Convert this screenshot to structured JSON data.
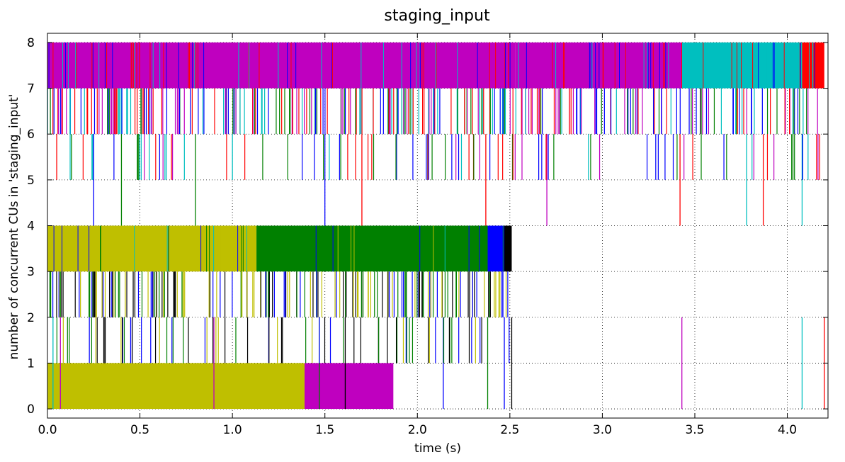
{
  "chart_data": {
    "type": "step",
    "title": "staging_input",
    "xlabel": "time (s)",
    "ylabel": "number of concurrent CUs in 'staging_input'",
    "xlim": [
      0.0,
      4.22
    ],
    "ylim": [
      -0.2,
      8.2
    ],
    "x_ticks": [
      0.0,
      0.5,
      1.0,
      1.5,
      2.0,
      2.5,
      3.0,
      3.5,
      4.0
    ],
    "x_tick_labels": [
      "0.0",
      "0.5",
      "1.0",
      "1.5",
      "2.0",
      "2.5",
      "3.0",
      "3.5",
      "4.0"
    ],
    "y_ticks": [
      0,
      1,
      2,
      3,
      4,
      5,
      6,
      7,
      8
    ],
    "y_tick_labels": [
      "0",
      "1",
      "2",
      "3",
      "4",
      "5",
      "6",
      "7",
      "8"
    ],
    "grid": true,
    "grid_style": "dotted",
    "legend": "none",
    "colors": {
      "b": "#0000ff",
      "g": "#008000",
      "r": "#ff0000",
      "c": "#00bfbf",
      "m": "#bf00bf",
      "y": "#bfbf00",
      "k": "#000000"
    },
    "filled_regions": [
      {
        "color": "m",
        "x0": 0.0,
        "x1": 2.53,
        "y0": 7,
        "y1": 8
      },
      {
        "color": "m",
        "x0": 2.53,
        "x1": 3.43,
        "y0": 7,
        "y1": 8
      },
      {
        "color": "c",
        "x0": 3.43,
        "x1": 4.08,
        "y0": 7,
        "y1": 8
      },
      {
        "color": "r",
        "x0": 4.08,
        "x1": 4.2,
        "y0": 7,
        "y1": 8
      },
      {
        "color": "y",
        "x0": 0.0,
        "x1": 1.13,
        "y0": 3,
        "y1": 4
      },
      {
        "color": "g",
        "x0": 1.13,
        "x1": 2.38,
        "y0": 3,
        "y1": 4
      },
      {
        "color": "b",
        "x0": 2.38,
        "x1": 2.47,
        "y0": 3,
        "y1": 4
      },
      {
        "color": "k",
        "x0": 2.47,
        "x1": 2.51,
        "y0": 3,
        "y1": 4
      },
      {
        "color": "y",
        "x0": 0.0,
        "x1": 1.39,
        "y0": 0,
        "y1": 1
      },
      {
        "color": "m",
        "x0": 1.39,
        "x1": 1.87,
        "y0": 0,
        "y1": 1
      }
    ],
    "bands": [
      {
        "y0": 6,
        "y1": 7,
        "x0": 0.0,
        "x1": 4.2,
        "colors": [
          "m",
          "r",
          "c",
          "b",
          "g"
        ]
      },
      {
        "y0": 2,
        "y1": 3,
        "x0": 0.0,
        "x1": 2.51,
        "colors": [
          "y",
          "b",
          "g",
          "k"
        ]
      }
    ],
    "spikes": [
      {
        "x": 0.05,
        "y0": 5,
        "y1": 6,
        "color": "r"
      },
      {
        "x": 0.13,
        "y0": 5,
        "y1": 6,
        "color": "g"
      },
      {
        "x": 0.25,
        "y0": 4,
        "y1": 6,
        "color": "b"
      },
      {
        "x": 0.4,
        "y0": 4,
        "y1": 6,
        "color": "g"
      },
      {
        "x": 0.8,
        "y0": 4,
        "y1": 6,
        "color": "g"
      },
      {
        "x": 1.0,
        "y0": 5,
        "y1": 6,
        "color": "c"
      },
      {
        "x": 1.5,
        "y0": 4,
        "y1": 6,
        "color": "b"
      },
      {
        "x": 1.7,
        "y0": 4,
        "y1": 6,
        "color": "r"
      },
      {
        "x": 2.37,
        "y0": 4,
        "y1": 6,
        "color": "r"
      },
      {
        "x": 2.7,
        "y0": 4,
        "y1": 6,
        "color": "m"
      },
      {
        "x": 3.42,
        "y0": 4,
        "y1": 6,
        "color": "r"
      },
      {
        "x": 3.78,
        "y0": 4,
        "y1": 6,
        "color": "c"
      },
      {
        "x": 3.87,
        "y0": 4,
        "y1": 6,
        "color": "r"
      },
      {
        "x": 4.08,
        "y0": 4,
        "y1": 6,
        "color": "c"
      },
      {
        "x": 0.03,
        "y0": 0,
        "y1": 2,
        "color": "c"
      },
      {
        "x": 0.07,
        "y0": 0,
        "y1": 2,
        "color": "m"
      },
      {
        "x": 0.45,
        "y0": 1,
        "y1": 2,
        "color": "b"
      },
      {
        "x": 0.9,
        "y0": 0,
        "y1": 2,
        "color": "m"
      },
      {
        "x": 1.47,
        "y0": 0,
        "y1": 2,
        "color": "g"
      },
      {
        "x": 1.61,
        "y0": 0,
        "y1": 2,
        "color": "k"
      },
      {
        "x": 2.14,
        "y0": 0,
        "y1": 2,
        "color": "b"
      },
      {
        "x": 2.38,
        "y0": 0,
        "y1": 2,
        "color": "g"
      },
      {
        "x": 2.47,
        "y0": 0,
        "y1": 2,
        "color": "b"
      },
      {
        "x": 2.51,
        "y0": 0,
        "y1": 2,
        "color": "k"
      },
      {
        "x": 3.43,
        "y0": 0,
        "y1": 2,
        "color": "m"
      },
      {
        "x": 4.08,
        "y0": 0,
        "y1": 2,
        "color": "c"
      },
      {
        "x": 4.2,
        "y0": 0,
        "y1": 2,
        "color": "r"
      }
    ]
  }
}
